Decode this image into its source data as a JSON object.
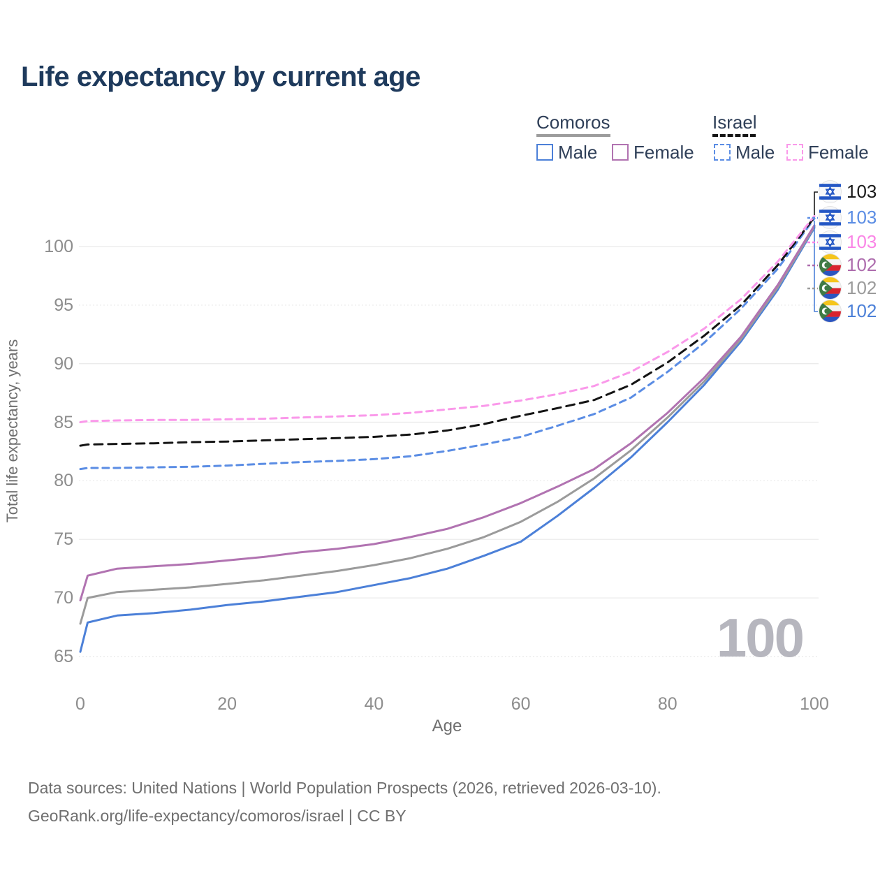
{
  "title": "Life expectancy by current age",
  "legend": {
    "groups": [
      {
        "label": "Comoros",
        "underline_style": "solid",
        "underline_color": "#9c9c9c",
        "items": [
          {
            "label": "Male",
            "color": "#4c80d8",
            "dashed": false
          },
          {
            "label": "Female",
            "color": "#b173b1",
            "dashed": false
          }
        ]
      },
      {
        "label": "Israel",
        "underline_style": "dashed",
        "underline_color": "#141414",
        "items": [
          {
            "label": "Male",
            "color": "#5b8de4",
            "dashed": true
          },
          {
            "label": "Female",
            "color": "#fa99ea",
            "dashed": true
          }
        ]
      }
    ]
  },
  "axes": {
    "y_title": "Total life expectancy, years",
    "x_title": "Age",
    "y_ticks": [
      65,
      70,
      75,
      80,
      85,
      90,
      95,
      100
    ],
    "x_ticks": [
      0,
      20,
      40,
      60,
      80,
      100
    ],
    "grid_color": "#ebebeb",
    "tick_color": "#8d8d8d"
  },
  "chart_data": {
    "type": "line",
    "title": "Life expectancy by current age",
    "xlabel": "Age",
    "ylabel": "Total life expectancy, years",
    "xlim": [
      0,
      100
    ],
    "ylim": [
      63,
      103.5
    ],
    "grid": "horizontal",
    "legend_position": "top-right",
    "x": [
      0,
      1,
      5,
      10,
      15,
      20,
      25,
      30,
      35,
      40,
      45,
      50,
      55,
      60,
      65,
      70,
      75,
      80,
      85,
      90,
      95,
      100
    ],
    "series": [
      {
        "id": "comoros-male",
        "name": "Comoros Male",
        "color": "#4c80d8",
        "dashed": false,
        "values": [
          65.4,
          67.9,
          68.5,
          68.7,
          69.0,
          69.4,
          69.7,
          70.1,
          70.5,
          71.1,
          71.7,
          72.5,
          73.6,
          74.8,
          77.0,
          79.4,
          82.0,
          85.0,
          88.2,
          91.9,
          96.3,
          101.6
        ]
      },
      {
        "id": "comoros-total",
        "name": "Comoros Both sexes",
        "color": "#9b9b9b",
        "dashed": false,
        "values": [
          67.8,
          70.0,
          70.5,
          70.7,
          70.9,
          71.2,
          71.5,
          71.9,
          72.3,
          72.8,
          73.4,
          74.2,
          75.2,
          76.5,
          78.2,
          80.2,
          82.6,
          85.4,
          88.5,
          92.1,
          96.5,
          101.7
        ]
      },
      {
        "id": "comoros-female",
        "name": "Comoros Female",
        "color": "#b173b1",
        "dashed": false,
        "values": [
          69.8,
          71.9,
          72.5,
          72.7,
          72.9,
          73.2,
          73.5,
          73.9,
          74.2,
          74.6,
          75.2,
          75.9,
          76.9,
          78.1,
          79.5,
          81.0,
          83.2,
          85.8,
          88.8,
          92.3,
          96.7,
          101.8
        ]
      },
      {
        "id": "israel-male",
        "name": "Israel Male",
        "color": "#5b8de4",
        "dashed": true,
        "values": [
          81.0,
          81.1,
          81.1,
          81.15,
          81.2,
          81.3,
          81.45,
          81.6,
          81.7,
          81.85,
          82.1,
          82.55,
          83.1,
          83.75,
          84.7,
          85.7,
          87.1,
          89.3,
          91.8,
          94.7,
          98.1,
          102.4
        ]
      },
      {
        "id": "israel-total",
        "name": "Israel Both sexes",
        "color": "#141414",
        "dashed": true,
        "values": [
          83.0,
          83.1,
          83.15,
          83.2,
          83.3,
          83.35,
          83.45,
          83.55,
          83.65,
          83.75,
          83.95,
          84.3,
          84.85,
          85.55,
          86.2,
          86.9,
          88.2,
          90.1,
          92.4,
          95.0,
          98.4,
          102.5
        ]
      },
      {
        "id": "israel-female",
        "name": "Israel Female",
        "color": "#fa99ea",
        "dashed": true,
        "values": [
          85.0,
          85.1,
          85.15,
          85.2,
          85.2,
          85.25,
          85.3,
          85.4,
          85.5,
          85.6,
          85.8,
          86.1,
          86.4,
          86.85,
          87.4,
          88.1,
          89.3,
          91.0,
          93.0,
          95.5,
          98.7,
          102.6
        ]
      }
    ],
    "end_labels": [
      {
        "value": "103",
        "flag": "israel",
        "color": "#1a1a1a",
        "series": "israel-total"
      },
      {
        "value": "103",
        "flag": "israel",
        "color": "#5b8de4",
        "series": "israel-male"
      },
      {
        "value": "103",
        "flag": "israel",
        "color": "#fa85e6",
        "series": "israel-female"
      },
      {
        "value": "102",
        "flag": "comoros",
        "color": "#ad6cad",
        "series": "comoros-female"
      },
      {
        "value": "102",
        "flag": "comoros",
        "color": "#9b9b9b",
        "series": "comoros-total"
      },
      {
        "value": "102",
        "flag": "comoros",
        "color": "#4c80d8",
        "series": "comoros-male"
      }
    ]
  },
  "watermark": "100",
  "footer": {
    "line1": "Data sources: United Nations | World Population Prospects (2026, retrieved 2026-03-10).",
    "line2": "GeoRank.org/life-expectancy/comoros/israel | CC BY"
  }
}
